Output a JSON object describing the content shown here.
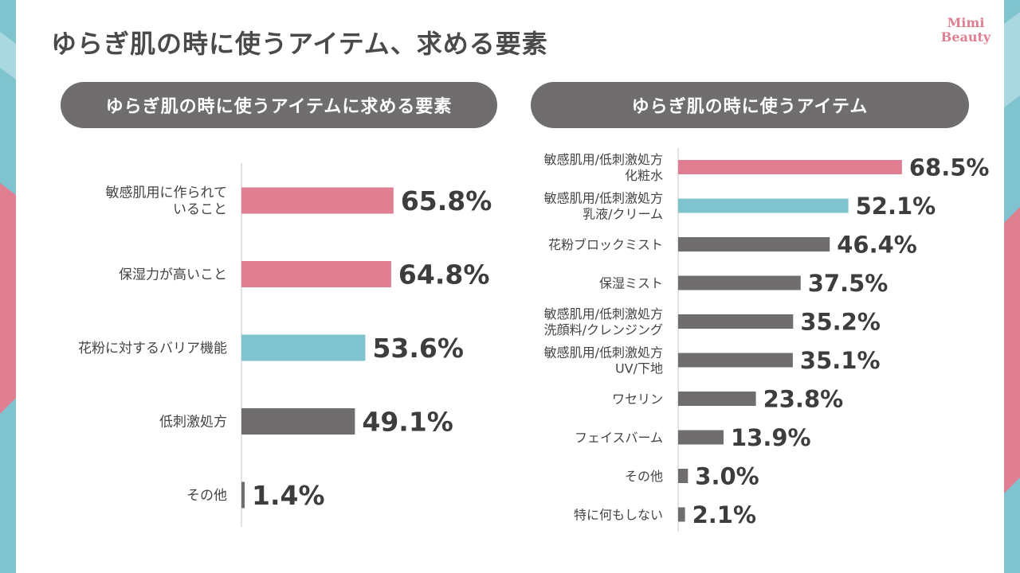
{
  "page": {
    "title": "ゆらぎ肌の時に使うアイテム、求める要素",
    "brand_line1": "Mimi",
    "brand_line2": "Beauty"
  },
  "colors": {
    "pink": "#e07f91",
    "teal": "#7fc3cf",
    "gray": "#6f6d6e",
    "pill": "#6f6d6e",
    "axis": "#d9d9d9"
  },
  "chart_data": [
    {
      "type": "bar",
      "orientation": "horizontal",
      "title": "ゆらぎ肌の時に使うアイテムに求める要素",
      "categories": [
        [
          "敏感肌用に作られて",
          "いること"
        ],
        [
          "保湿力が高いこと"
        ],
        [
          "花粉に対するバリア機能"
        ],
        [
          "低刺激処方"
        ],
        [
          "その他"
        ]
      ],
      "values": [
        65.8,
        64.8,
        53.6,
        49.1,
        1.4
      ],
      "value_labels": [
        "65.8%",
        "64.8%",
        "53.6%",
        "49.1%",
        "1.4%"
      ],
      "bar_colors": [
        "pink",
        "pink",
        "teal",
        "gray",
        "gray"
      ],
      "xlim": [
        0,
        100
      ],
      "grid": false,
      "legend": "none"
    },
    {
      "type": "bar",
      "orientation": "horizontal",
      "title": "ゆらぎ肌の時に使うアイテム",
      "categories": [
        [
          "敏感肌用/低刺激処方",
          "化粧水"
        ],
        [
          "敏感肌用/低刺激処方",
          "乳液/クリーム"
        ],
        [
          "花粉ブロックミスト"
        ],
        [
          "保湿ミスト"
        ],
        [
          "敏感肌用/低刺激処方",
          "洗顔料/クレンジング"
        ],
        [
          "敏感肌用/低刺激処方",
          "UV/下地"
        ],
        [
          "ワセリン"
        ],
        [
          "フェイスバーム"
        ],
        [
          "その他"
        ],
        [
          "特に何もしない"
        ]
      ],
      "values": [
        68.5,
        52.1,
        46.4,
        37.5,
        35.2,
        35.1,
        23.8,
        13.9,
        3.0,
        2.1
      ],
      "value_labels": [
        "68.5%",
        "52.1%",
        "46.4%",
        "37.5%",
        "35.2%",
        "35.1%",
        "23.8%",
        "13.9%",
        "3.0%",
        "2.1%"
      ],
      "bar_colors": [
        "pink",
        "teal",
        "gray",
        "gray",
        "gray",
        "gray",
        "gray",
        "gray",
        "gray",
        "gray"
      ],
      "xlim": [
        0,
        100
      ],
      "grid": false,
      "legend": "none"
    }
  ]
}
